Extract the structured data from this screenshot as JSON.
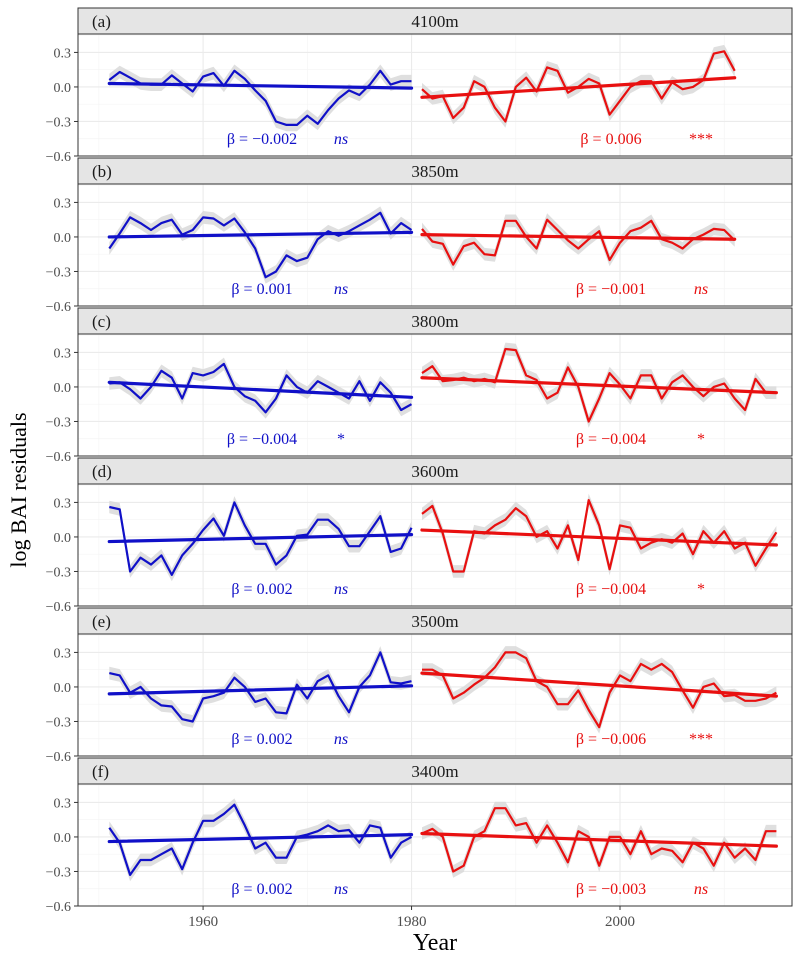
{
  "figure": {
    "ylabel": "log BAI residuals",
    "xlabel": "Year",
    "x_ticks": [
      1960,
      1980,
      2000
    ],
    "y_ticks": [
      0.3,
      0.0,
      -0.3,
      -0.6
    ],
    "y_tick_labels": [
      "0.3",
      "0.0",
      "−0.3",
      "−0.6"
    ],
    "xlim": [
      1948,
      2016.5
    ],
    "ylim": [
      -0.6,
      0.46
    ],
    "colors": {
      "early": "#1010c8",
      "late": "#e81010",
      "ribbon": "#d9d9d9",
      "strip": "#e5e5e5",
      "grid": "#ebebeb"
    }
  },
  "chart_data": [
    {
      "type": "line",
      "panel": "(a)",
      "title": "4100m",
      "early": {
        "beta_label": "β = −0.002",
        "sig": "ns",
        "trend": [
          [
            1951,
            0.03
          ],
          [
            1980,
            -0.01
          ]
        ],
        "x": [
          1951,
          1952,
          1953,
          1954,
          1955,
          1956,
          1957,
          1958,
          1959,
          1960,
          1961,
          1962,
          1963,
          1964,
          1965,
          1966,
          1967,
          1968,
          1969,
          1970,
          1971,
          1972,
          1973,
          1974,
          1975,
          1976,
          1977,
          1978,
          1979,
          1980
        ],
        "values": [
          0.06,
          0.13,
          0.08,
          0.03,
          0.02,
          0.02,
          0.1,
          0.03,
          -0.04,
          0.09,
          0.12,
          0.01,
          0.14,
          0.07,
          -0.03,
          -0.12,
          -0.3,
          -0.33,
          -0.33,
          -0.25,
          -0.32,
          -0.2,
          -0.1,
          -0.03,
          -0.07,
          0.02,
          0.14,
          0.02,
          0.05,
          0.05
        ]
      },
      "late": {
        "beta_label": "β = 0.006",
        "sig": "***",
        "trend": [
          [
            1981,
            -0.09
          ],
          [
            2011,
            0.08
          ]
        ],
        "x": [
          1981,
          1982,
          1983,
          1984,
          1985,
          1986,
          1987,
          1988,
          1989,
          1990,
          1991,
          1992,
          1993,
          1994,
          1995,
          1996,
          1997,
          1998,
          1999,
          2000,
          2001,
          2002,
          2003,
          2004,
          2005,
          2006,
          2007,
          2008,
          2009,
          2010,
          2011
        ],
        "values": [
          -0.02,
          -0.1,
          -0.08,
          -0.27,
          -0.18,
          0.05,
          0.0,
          -0.18,
          -0.3,
          0.0,
          0.08,
          -0.04,
          0.17,
          0.14,
          -0.05,
          0.0,
          0.07,
          0.03,
          -0.24,
          -0.12,
          0.0,
          0.05,
          0.05,
          -0.1,
          0.04,
          -0.02,
          0.0,
          0.06,
          0.29,
          0.31,
          0.14
        ]
      }
    },
    {
      "type": "line",
      "panel": "(b)",
      "title": "3850m",
      "early": {
        "beta_label": "β = 0.001",
        "sig": "ns",
        "trend": [
          [
            1951,
            0.0
          ],
          [
            1980,
            0.04
          ]
        ],
        "x": [
          1951,
          1952,
          1953,
          1954,
          1955,
          1956,
          1957,
          1958,
          1959,
          1960,
          1961,
          1962,
          1963,
          1964,
          1965,
          1966,
          1967,
          1968,
          1969,
          1970,
          1971,
          1972,
          1973,
          1974,
          1975,
          1976,
          1977,
          1978,
          1979,
          1980
        ],
        "values": [
          -0.1,
          0.03,
          0.17,
          0.12,
          0.06,
          0.12,
          0.15,
          0.02,
          0.06,
          0.17,
          0.16,
          0.1,
          0.16,
          0.04,
          -0.1,
          -0.35,
          -0.3,
          -0.16,
          -0.21,
          -0.18,
          -0.02,
          0.05,
          0.01,
          0.05,
          0.1,
          0.15,
          0.21,
          0.03,
          0.12,
          0.06
        ]
      },
      "late": {
        "beta_label": "β = −0.001",
        "sig": "ns",
        "trend": [
          [
            1981,
            0.02
          ],
          [
            2011,
            -0.02
          ]
        ],
        "x": [
          1981,
          1982,
          1983,
          1984,
          1985,
          1986,
          1987,
          1988,
          1989,
          1990,
          1991,
          1992,
          1993,
          1994,
          1995,
          1996,
          1997,
          1998,
          1999,
          2000,
          2001,
          2002,
          2003,
          2004,
          2005,
          2006,
          2007,
          2008,
          2009,
          2010,
          2011
        ],
        "values": [
          0.07,
          -0.04,
          -0.06,
          -0.24,
          -0.08,
          -0.05,
          -0.15,
          -0.16,
          0.14,
          0.14,
          0.0,
          -0.1,
          0.15,
          0.06,
          -0.03,
          -0.1,
          -0.02,
          0.05,
          -0.2,
          -0.05,
          0.05,
          0.08,
          0.14,
          -0.02,
          -0.05,
          -0.1,
          -0.02,
          0.02,
          0.07,
          0.06,
          -0.03
        ]
      }
    },
    {
      "type": "line",
      "panel": "(c)",
      "title": "3800m",
      "early": {
        "beta_label": "β = −0.004",
        "sig": "*",
        "trend": [
          [
            1951,
            0.04
          ],
          [
            1980,
            -0.09
          ]
        ],
        "x": [
          1951,
          1952,
          1953,
          1954,
          1955,
          1956,
          1957,
          1958,
          1959,
          1960,
          1961,
          1962,
          1963,
          1964,
          1965,
          1966,
          1967,
          1968,
          1969,
          1970,
          1971,
          1972,
          1973,
          1974,
          1975,
          1976,
          1977,
          1978,
          1979,
          1980
        ],
        "values": [
          0.03,
          0.04,
          -0.02,
          -0.1,
          0.0,
          0.14,
          0.08,
          -0.1,
          0.12,
          0.1,
          0.13,
          0.2,
          0.0,
          -0.08,
          -0.12,
          -0.22,
          -0.1,
          0.1,
          0.0,
          -0.05,
          0.05,
          0.0,
          -0.05,
          -0.1,
          0.05,
          -0.12,
          0.04,
          -0.05,
          -0.2,
          -0.15
        ]
      },
      "late": {
        "beta_label": "β = −0.004",
        "sig": "*",
        "trend": [
          [
            1981,
            0.08
          ],
          [
            2015,
            -0.05
          ]
        ],
        "x": [
          1981,
          1982,
          1983,
          1984,
          1985,
          1986,
          1987,
          1988,
          1989,
          1990,
          1991,
          1992,
          1993,
          1994,
          1995,
          1996,
          1997,
          1998,
          1999,
          2000,
          2001,
          2002,
          2003,
          2004,
          2005,
          2006,
          2007,
          2008,
          2009,
          2010,
          2011,
          2012,
          2013,
          2014,
          2015
        ],
        "values": [
          0.12,
          0.18,
          0.05,
          0.06,
          0.08,
          0.05,
          0.07,
          0.04,
          0.33,
          0.32,
          0.1,
          0.06,
          -0.1,
          -0.05,
          0.17,
          0.0,
          -0.3,
          -0.1,
          0.12,
          0.02,
          -0.1,
          0.1,
          0.1,
          -0.1,
          0.04,
          0.1,
          0.0,
          -0.08,
          0.0,
          0.03,
          -0.1,
          -0.2,
          0.07,
          -0.05,
          -0.05
        ]
      }
    },
    {
      "type": "line",
      "panel": "(d)",
      "title": "3600m",
      "early": {
        "beta_label": "β = 0.002",
        "sig": "ns",
        "trend": [
          [
            1951,
            -0.04
          ],
          [
            1980,
            0.02
          ]
        ],
        "x": [
          1951,
          1952,
          1953,
          1954,
          1955,
          1956,
          1957,
          1958,
          1959,
          1960,
          1961,
          1962,
          1963,
          1964,
          1965,
          1966,
          1967,
          1968,
          1969,
          1970,
          1971,
          1972,
          1973,
          1974,
          1975,
          1976,
          1977,
          1978,
          1979,
          1980
        ],
        "values": [
          0.26,
          0.24,
          -0.3,
          -0.18,
          -0.24,
          -0.16,
          -0.33,
          -0.16,
          -0.06,
          0.06,
          0.16,
          0.01,
          0.3,
          0.1,
          -0.06,
          -0.06,
          -0.24,
          -0.16,
          0.01,
          0.02,
          0.15,
          0.15,
          0.07,
          -0.08,
          -0.08,
          0.05,
          0.18,
          -0.13,
          -0.1,
          0.08
        ]
      },
      "late": {
        "beta_label": "β = −0.004",
        "sig": "*",
        "trend": [
          [
            1981,
            0.06
          ],
          [
            2015,
            -0.07
          ]
        ],
        "x": [
          1981,
          1982,
          1983,
          1984,
          1985,
          1986,
          1987,
          1988,
          1989,
          1990,
          1991,
          1992,
          1993,
          1994,
          1995,
          1996,
          1997,
          1998,
          1999,
          2000,
          2001,
          2002,
          2003,
          2004,
          2005,
          2006,
          2007,
          2008,
          2009,
          2010,
          2011,
          2012,
          2013,
          2014,
          2015
        ],
        "values": [
          0.2,
          0.27,
          0.03,
          -0.3,
          -0.3,
          0.05,
          0.03,
          0.1,
          0.15,
          0.25,
          0.18,
          0.0,
          0.05,
          -0.1,
          0.1,
          -0.2,
          0.32,
          0.1,
          -0.28,
          0.1,
          0.08,
          -0.1,
          -0.05,
          -0.02,
          -0.05,
          0.03,
          -0.15,
          0.05,
          -0.05,
          0.05,
          -0.1,
          -0.05,
          -0.25,
          -0.1,
          0.04
        ]
      }
    },
    {
      "type": "line",
      "panel": "(e)",
      "title": "3500m",
      "early": {
        "beta_label": "β = 0.002",
        "sig": "ns",
        "trend": [
          [
            1951,
            -0.06
          ],
          [
            1980,
            0.01
          ]
        ],
        "x": [
          1951,
          1952,
          1953,
          1954,
          1955,
          1956,
          1957,
          1958,
          1959,
          1960,
          1961,
          1962,
          1963,
          1964,
          1965,
          1966,
          1967,
          1968,
          1969,
          1970,
          1971,
          1972,
          1973,
          1974,
          1975,
          1976,
          1977,
          1978,
          1979,
          1980
        ],
        "values": [
          0.12,
          0.1,
          -0.05,
          0.0,
          -0.1,
          -0.16,
          -0.17,
          -0.28,
          -0.3,
          -0.1,
          -0.08,
          -0.05,
          0.08,
          0.0,
          -0.13,
          -0.1,
          -0.22,
          -0.23,
          0.02,
          -0.1,
          0.05,
          0.1,
          -0.08,
          -0.22,
          0.0,
          0.1,
          0.3,
          0.04,
          0.03,
          0.05
        ]
      },
      "late": {
        "beta_label": "β = −0.006",
        "sig": "***",
        "trend": [
          [
            1981,
            0.12
          ],
          [
            2015,
            -0.08
          ]
        ],
        "x": [
          1981,
          1982,
          1983,
          1984,
          1985,
          1986,
          1987,
          1988,
          1989,
          1990,
          1991,
          1992,
          1993,
          1994,
          1995,
          1996,
          1997,
          1998,
          1999,
          2000,
          2001,
          2002,
          2003,
          2004,
          2005,
          2006,
          2007,
          2008,
          2009,
          2010,
          2011,
          2012,
          2013,
          2014,
          2015
        ],
        "values": [
          0.15,
          0.15,
          0.1,
          -0.1,
          -0.05,
          0.02,
          0.08,
          0.17,
          0.3,
          0.3,
          0.25,
          0.05,
          0.0,
          -0.15,
          -0.15,
          -0.03,
          -0.2,
          -0.35,
          -0.05,
          0.1,
          0.05,
          0.2,
          0.15,
          0.2,
          0.13,
          -0.03,
          -0.18,
          0.0,
          0.03,
          -0.08,
          -0.07,
          -0.12,
          -0.12,
          -0.1,
          -0.05
        ]
      }
    },
    {
      "type": "line",
      "panel": "(f)",
      "title": "3400m",
      "early": {
        "beta_label": "β = 0.002",
        "sig": "ns",
        "trend": [
          [
            1951,
            -0.04
          ],
          [
            1980,
            0.02
          ]
        ],
        "x": [
          1951,
          1952,
          1953,
          1954,
          1955,
          1956,
          1957,
          1958,
          1959,
          1960,
          1961,
          1962,
          1963,
          1964,
          1965,
          1966,
          1967,
          1968,
          1969,
          1970,
          1971,
          1972,
          1973,
          1974,
          1975,
          1976,
          1977,
          1978,
          1979,
          1980
        ],
        "values": [
          0.08,
          -0.05,
          -0.33,
          -0.2,
          -0.2,
          -0.15,
          -0.1,
          -0.28,
          -0.05,
          0.14,
          0.14,
          0.2,
          0.28,
          0.1,
          -0.1,
          -0.05,
          -0.18,
          -0.18,
          0.0,
          0.02,
          0.05,
          0.1,
          0.05,
          0.06,
          -0.05,
          0.1,
          0.08,
          -0.18,
          -0.05,
          0.0
        ]
      },
      "late": {
        "beta_label": "β = −0.003",
        "sig": "ns",
        "trend": [
          [
            1981,
            0.03
          ],
          [
            2015,
            -0.08
          ]
        ],
        "x": [
          1981,
          1982,
          1983,
          1984,
          1985,
          1986,
          1987,
          1988,
          1989,
          1990,
          1991,
          1992,
          1993,
          1994,
          1995,
          1996,
          1997,
          1998,
          1999,
          2000,
          2001,
          2002,
          2003,
          2004,
          2005,
          2006,
          2007,
          2008,
          2009,
          2010,
          2011,
          2012,
          2013,
          2014,
          2015
        ],
        "values": [
          0.03,
          0.07,
          0.0,
          -0.3,
          -0.25,
          0.0,
          0.05,
          0.25,
          0.25,
          0.1,
          0.12,
          -0.05,
          0.1,
          -0.05,
          -0.22,
          0.05,
          0.0,
          -0.25,
          0.0,
          0.0,
          -0.15,
          0.05,
          -0.15,
          -0.1,
          -0.12,
          -0.22,
          -0.05,
          -0.1,
          -0.25,
          -0.05,
          -0.18,
          -0.1,
          -0.2,
          0.05,
          0.05
        ]
      }
    }
  ]
}
